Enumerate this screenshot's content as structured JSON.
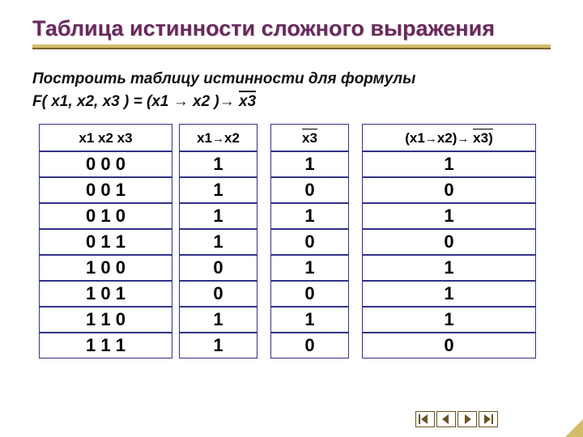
{
  "title": "Таблица истинности сложного выражения",
  "subtitle": "Построить таблицу истинности для  формулы",
  "formula_parts": {
    "lhs": "F( x1, x2, x3 ) = (x1 ",
    "arrow1": "→",
    "mid": " x2 )",
    "arrow2": "→",
    "space": " ",
    "x3_bar": "x3"
  },
  "headers": {
    "c1": "x1 x2 x3",
    "c2_a": "x1",
    "c2_arr": "→",
    "c2_b": "x2",
    "c3": "x3",
    "c4_a": "(x1",
    "c4_arr1": "→",
    "c4_b": "x2)",
    "c4_arr2": "→",
    "c4_c": " x3)"
  },
  "data": [
    [
      "0 0 0",
      "1",
      "1",
      "1"
    ],
    [
      "0 0 1",
      "1",
      "0",
      "0"
    ],
    [
      "0 1 0",
      "1",
      "1",
      "1"
    ],
    [
      "0 1 1",
      "1",
      "0",
      "0"
    ],
    [
      "1 0 0",
      "0",
      "1",
      "1"
    ],
    [
      "1 0 1",
      "0",
      "0",
      "1"
    ],
    [
      "1 1 0",
      "1",
      "1",
      "1"
    ],
    [
      "1 1 1",
      "1",
      "0",
      "0"
    ]
  ],
  "colors": {
    "title": "#682860",
    "border": "#31318c",
    "gold": "#d4bc6a",
    "gold_dark": "#7a6230"
  },
  "layout": {
    "col1_spacer": 8,
    "col1_main": 165,
    "col2_spacer_l": 8,
    "col2_main": 97,
    "col2_spacer_r": 8,
    "col3_spacer_l": 8,
    "col3_main": 97,
    "col3_spacer_r": 8,
    "col4_spacer_l": 8,
    "col4_main": 215,
    "col4_spacer_r": 8
  }
}
